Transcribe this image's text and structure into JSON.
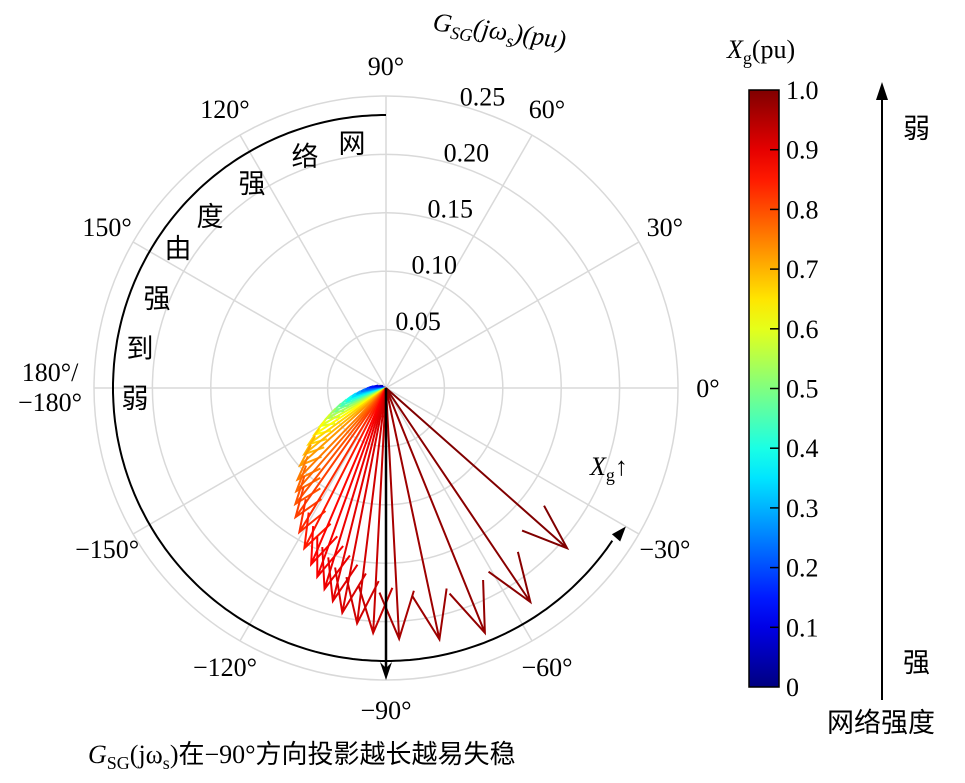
{
  "chart_data": {
    "type": "polar-phasor",
    "radial_axis": {
      "title": "G_SG(jω_s)(pu)",
      "title_main": "G",
      "title_sub": "SG",
      "title_rest": "(jω",
      "title_sub2": "s",
      "title_end": ")(pu)",
      "ticks": [
        0.05,
        0.1,
        0.15,
        0.2,
        0.25
      ],
      "tick_labels": [
        "0.05",
        "0.10",
        "0.15",
        "0.20",
        "0.25"
      ],
      "range": [
        0,
        0.25
      ]
    },
    "angular_axis": {
      "ticks_deg": [
        90,
        60,
        30,
        0,
        -30,
        -60,
        -90,
        -120,
        -150,
        180,
        150,
        120
      ],
      "tick_labels": [
        "90°",
        "60°",
        "30°",
        "0°",
        "−30°",
        "−60°",
        "−90°",
        "−120°",
        "−150°",
        "180°/\n−180°",
        "150°",
        "120°"
      ]
    },
    "grid": true,
    "grid_color": "#d9d9d9",
    "phasors": {
      "xg": [
        0.05,
        0.1,
        0.15,
        0.2,
        0.25,
        0.3,
        0.35,
        0.4,
        0.45,
        0.5,
        0.55,
        0.6,
        0.64,
        0.68,
        0.71,
        0.74,
        0.77,
        0.79,
        0.81,
        0.83,
        0.85,
        0.87,
        0.89,
        0.9,
        0.91,
        0.92,
        0.93,
        0.94,
        0.95,
        0.96,
        0.97,
        0.98,
        0.99,
        1.0
      ],
      "angle_deg": [
        165,
        172,
        178,
        -176,
        -172,
        -168,
        -165,
        -162,
        -159,
        -156,
        -153,
        -150,
        -147,
        -144,
        -141,
        -138,
        -134,
        -131,
        -128,
        -125,
        -121,
        -117,
        -113,
        -110,
        -107,
        -104,
        -101,
        -97,
        -93,
        -87,
        -78,
        -68,
        -56,
        -41.5
      ],
      "magnitude_pu": [
        0.006,
        0.01,
        0.014,
        0.018,
        0.022,
        0.027,
        0.032,
        0.037,
        0.043,
        0.05,
        0.057,
        0.065,
        0.073,
        0.082,
        0.09,
        0.099,
        0.109,
        0.117,
        0.126,
        0.135,
        0.144,
        0.154,
        0.164,
        0.172,
        0.18,
        0.188,
        0.196,
        0.203,
        0.21,
        0.215,
        0.22,
        0.226,
        0.221,
        0.207
      ]
    },
    "reference_arrow": {
      "angle_deg": -90,
      "magnitude_pu": 0.25,
      "color": "#000000"
    },
    "arc_annotation": {
      "text_chars": [
        "网",
        "络",
        "强",
        "度",
        "由",
        "强",
        "到",
        "弱"
      ],
      "from_deg": 90,
      "to_deg": -30,
      "end_label_main": "X",
      "end_label_sub": "g",
      "end_label_arrow": "↑"
    },
    "colorbar": {
      "title_main": "X",
      "title_sub": "g",
      "title_rest": "(pu)",
      "colormap": "jet",
      "range": [
        0,
        1.0
      ],
      "ticks": [
        1.0,
        0.9,
        0.8,
        0.7,
        0.6,
        0.5,
        0.4,
        0.3,
        0.2,
        0.1,
        0
      ],
      "tick_labels": [
        "1.0",
        "0.9",
        "0.8",
        "0.7",
        "0.6",
        "0.5",
        "0.4",
        "0.3",
        "0.2",
        "0.1",
        "0"
      ]
    },
    "strength_axis": {
      "top": "弱",
      "bottom": "强",
      "label": "网络强度"
    },
    "caption": {
      "main": "G",
      "sub": "SG",
      "mid": "(jω",
      "sub2": "s",
      "rest": ")在−90°方向投影越长越易失稳"
    }
  }
}
